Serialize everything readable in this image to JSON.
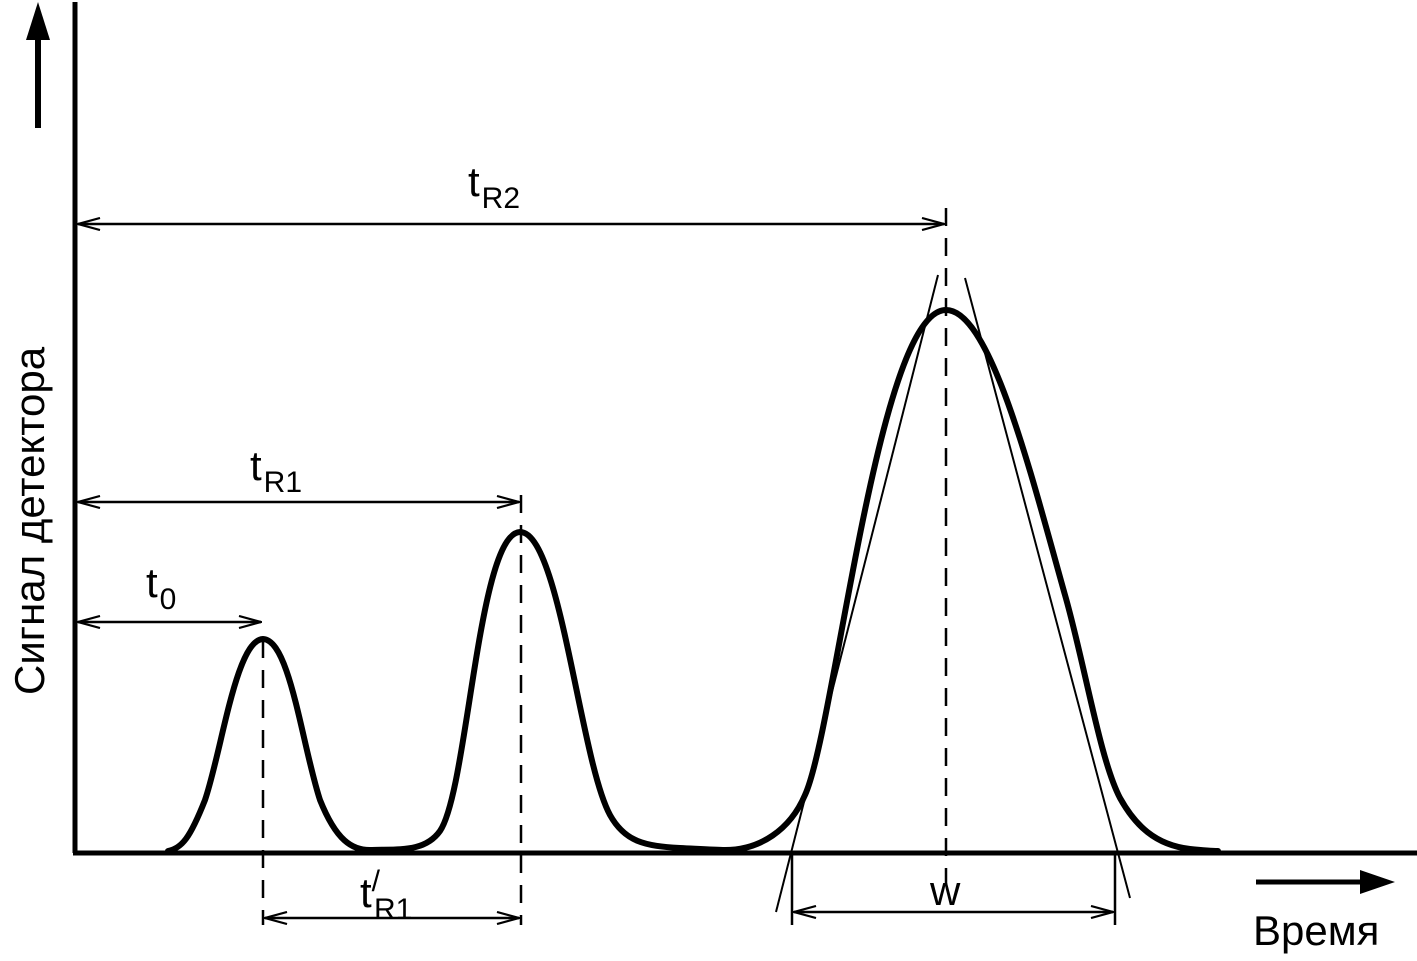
{
  "diagram": {
    "y_axis_label": "Сигнал детектора",
    "x_axis_label": "Время",
    "dimensions": {
      "t0": {
        "main": "t",
        "sub": "0"
      },
      "tR1": {
        "main": "t",
        "sub": "R1"
      },
      "tR2": {
        "main": "t",
        "sub": "R2"
      },
      "tR1_prime": {
        "main": "t",
        "prime": "/",
        "sub": "R1"
      },
      "w": {
        "main": "w"
      }
    },
    "colors": {
      "stroke": "#000000",
      "background": "#ffffff"
    }
  }
}
